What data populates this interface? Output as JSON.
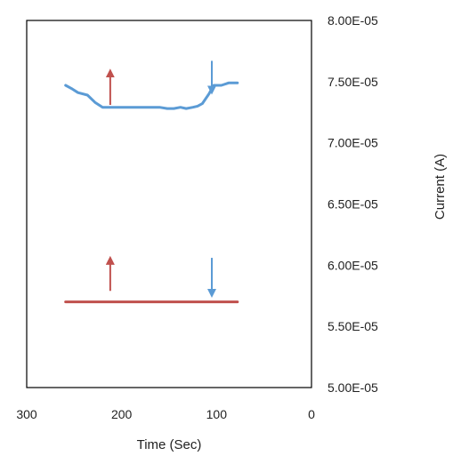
{
  "chart_data": {
    "type": "line",
    "xlabel": "Time (Sec)",
    "ylabel": "Current (A)",
    "xlim": [
      300,
      0
    ],
    "x_reversed": true,
    "ylim": [
      5e-05,
      8e-05
    ],
    "y_axis_side": "right",
    "x_ticks": [
      {
        "value": 300,
        "label": "300"
      },
      {
        "value": 200,
        "label": "200"
      },
      {
        "value": 100,
        "label": "100"
      },
      {
        "value": 0,
        "label": "0"
      }
    ],
    "y_ticks": [
      {
        "value": 8e-05,
        "label": "8.00E-05"
      },
      {
        "value": 7.5e-05,
        "label": "7.50E-05"
      },
      {
        "value": 7e-05,
        "label": "7.00E-05"
      },
      {
        "value": 6.5e-05,
        "label": "6.50E-05"
      },
      {
        "value": 6e-05,
        "label": "6.00E-05"
      },
      {
        "value": 5.5e-05,
        "label": "5.50E-05"
      },
      {
        "value": 5e-05,
        "label": "5.00E-05"
      }
    ],
    "grid": false,
    "legend": "none",
    "series": [
      {
        "color": "#5b9bd5",
        "points": [
          [
            259,
            7.47e-05
          ],
          [
            252,
            7.44e-05
          ],
          [
            246,
            7.41e-05
          ],
          [
            236,
            7.39e-05
          ],
          [
            228,
            7.33e-05
          ],
          [
            220,
            7.29e-05
          ],
          [
            200,
            7.29e-05
          ],
          [
            180,
            7.29e-05
          ],
          [
            160,
            7.29e-05
          ],
          [
            152,
            7.28e-05
          ],
          [
            145,
            7.28e-05
          ],
          [
            138,
            7.29e-05
          ],
          [
            132,
            7.28e-05
          ],
          [
            125,
            7.29e-05
          ],
          [
            120,
            7.3e-05
          ],
          [
            115,
            7.32e-05
          ],
          [
            108,
            7.4e-05
          ],
          [
            103,
            7.47e-05
          ],
          [
            95,
            7.47e-05
          ],
          [
            87,
            7.49e-05
          ],
          [
            78,
            7.49e-05
          ]
        ]
      },
      {
        "color": "#c0504d",
        "points": [
          [
            259,
            5.7e-05
          ],
          [
            78,
            5.7e-05
          ]
        ]
      }
    ],
    "annotations": [
      {
        "type": "arrow",
        "direction": "up",
        "x": 212,
        "y_from": 7.31e-05,
        "y_to": 7.57e-05,
        "color": "#c0504d"
      },
      {
        "type": "arrow",
        "direction": "down",
        "x": 105,
        "y_from": 7.67e-05,
        "y_to": 7.43e-05,
        "color": "#5b9bd5"
      },
      {
        "type": "arrow",
        "direction": "up",
        "x": 212,
        "y_from": 5.79e-05,
        "y_to": 6.04e-05,
        "color": "#c0504d"
      },
      {
        "type": "arrow",
        "direction": "down",
        "x": 105,
        "y_from": 6.06e-05,
        "y_to": 5.77e-05,
        "color": "#5b9bd5"
      }
    ]
  }
}
